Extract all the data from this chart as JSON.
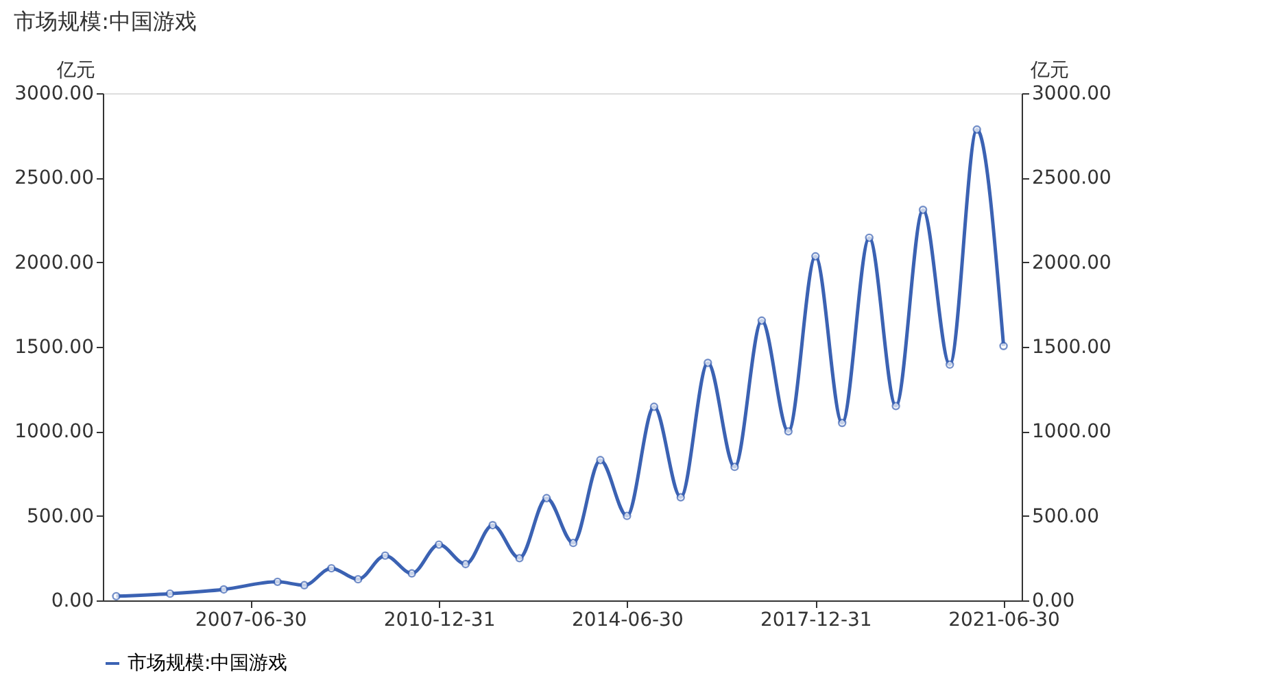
{
  "chart_data": {
    "type": "line",
    "title": "市场规模:中国游戏",
    "x": [
      "2004-12-31",
      "2005-12-31",
      "2006-12-31",
      "2007-12-31",
      "2008-06-30",
      "2008-12-31",
      "2009-06-30",
      "2009-12-31",
      "2010-06-30",
      "2010-12-31",
      "2011-06-30",
      "2011-12-31",
      "2012-06-30",
      "2012-12-31",
      "2013-06-30",
      "2013-12-31",
      "2014-06-30",
      "2014-12-31",
      "2015-06-30",
      "2015-12-31",
      "2016-06-30",
      "2016-12-31",
      "2017-06-30",
      "2017-12-31",
      "2018-06-30",
      "2018-12-31",
      "2019-06-30",
      "2019-12-31",
      "2020-06-30",
      "2020-12-31",
      "2021-06-30"
    ],
    "series": [
      {
        "name": "市场规模:中国游戏",
        "color": "#3b62b3",
        "values": [
          25,
          40,
          65,
          110,
          90,
          190,
          125,
          265,
          160,
          330,
          215,
          445,
          250,
          605,
          340,
          830,
          500,
          1145,
          610,
          1405,
          790,
          1655,
          1000,
          2035,
          1050,
          2145,
          1150,
          2310,
          1395,
          2785,
          1505
        ]
      }
    ],
    "ylabel": "亿元",
    "y2label": "亿元",
    "xlim": [
      "2004-10-01",
      "2021-10-31"
    ],
    "xticks": [
      "2007-06-30",
      "2010-12-31",
      "2014-06-30",
      "2017-12-31",
      "2021-06-30"
    ],
    "ylim": [
      0,
      3000
    ],
    "yticks": [
      {
        "value": 0,
        "label": "0.00"
      },
      {
        "value": 500,
        "label": "500.00"
      },
      {
        "value": 1000,
        "label": "1000.00"
      },
      {
        "value": 1500,
        "label": "1500.00"
      },
      {
        "value": 2000,
        "label": "2000.00"
      },
      {
        "value": 2500,
        "label": "2500.00"
      },
      {
        "value": 3000,
        "label": "3000.00"
      }
    ],
    "y2lim": [
      0,
      3000
    ],
    "y2ticks": [
      {
        "value": 0,
        "label": "0.00"
      },
      {
        "value": 500,
        "label": "500.00"
      },
      {
        "value": 1000,
        "label": "1000.00"
      },
      {
        "value": 1500,
        "label": "1500.00"
      },
      {
        "value": 2000,
        "label": "2000.00"
      },
      {
        "value": 2500,
        "label": "2500.00"
      },
      {
        "value": 3000,
        "label": "3000.00"
      }
    ],
    "grid": false,
    "legend": "bottom",
    "marker": "circle",
    "line_style": "solid"
  }
}
